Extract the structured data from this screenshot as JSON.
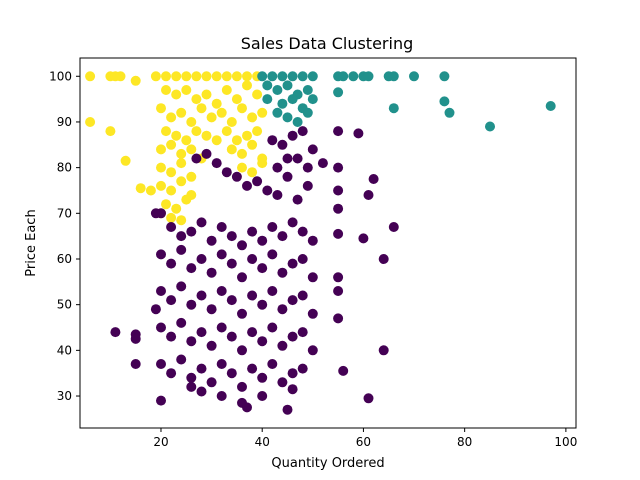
{
  "chart_data": {
    "type": "scatter",
    "title": "Sales Data Clustering",
    "xlabel": "Quantity Ordered",
    "ylabel": "Price Each",
    "xlim": [
      4,
      102
    ],
    "ylim": [
      23,
      104
    ],
    "xticks": [
      20,
      40,
      60,
      80,
      100
    ],
    "yticks": [
      30,
      40,
      50,
      60,
      70,
      80,
      90,
      100
    ],
    "grid": false,
    "legend": "none",
    "colors": {
      "cluster_yellow": "#fde725",
      "cluster_teal": "#21918c",
      "cluster_purple": "#440154"
    },
    "series": [
      {
        "color_key": "cluster_yellow",
        "points": [
          [
            6,
            100
          ],
          [
            6,
            90
          ],
          [
            10,
            100
          ],
          [
            11,
            100
          ],
          [
            12,
            100
          ],
          [
            15,
            99
          ],
          [
            10,
            88
          ],
          [
            13,
            81.5
          ],
          [
            16,
            75.5
          ],
          [
            18,
            75
          ],
          [
            19,
            100
          ],
          [
            21,
            100
          ],
          [
            23,
            100
          ],
          [
            25,
            100
          ],
          [
            27,
            100
          ],
          [
            29,
            100
          ],
          [
            31,
            100
          ],
          [
            33,
            100
          ],
          [
            35,
            100
          ],
          [
            37,
            100
          ],
          [
            39,
            100
          ],
          [
            21,
            97
          ],
          [
            23,
            96
          ],
          [
            25,
            97
          ],
          [
            27,
            95
          ],
          [
            29,
            96
          ],
          [
            31,
            94
          ],
          [
            33,
            97
          ],
          [
            35,
            95
          ],
          [
            37,
            98
          ],
          [
            39,
            96
          ],
          [
            20,
            93
          ],
          [
            22,
            91
          ],
          [
            24,
            92
          ],
          [
            26,
            90
          ],
          [
            28,
            93
          ],
          [
            30,
            91
          ],
          [
            32,
            92
          ],
          [
            34,
            90
          ],
          [
            36,
            93
          ],
          [
            38,
            91
          ],
          [
            40,
            92
          ],
          [
            21,
            88
          ],
          [
            23,
            87
          ],
          [
            25,
            86
          ],
          [
            27,
            88
          ],
          [
            29,
            87
          ],
          [
            31,
            86
          ],
          [
            33,
            88
          ],
          [
            35,
            86
          ],
          [
            37,
            87
          ],
          [
            39,
            88
          ],
          [
            20,
            84
          ],
          [
            22,
            85
          ],
          [
            24,
            83
          ],
          [
            26,
            84
          ],
          [
            28,
            82
          ],
          [
            34,
            84
          ],
          [
            36,
            83
          ],
          [
            38,
            85
          ],
          [
            40,
            82
          ],
          [
            20,
            80
          ],
          [
            22,
            79
          ],
          [
            24,
            81
          ],
          [
            26,
            78
          ],
          [
            36,
            80
          ],
          [
            38,
            79
          ],
          [
            40,
            81
          ],
          [
            20,
            76
          ],
          [
            22,
            75
          ],
          [
            24,
            77
          ],
          [
            26,
            74
          ],
          [
            21,
            72
          ],
          [
            23,
            71
          ],
          [
            25,
            73
          ],
          [
            20,
            70
          ],
          [
            22,
            69
          ],
          [
            24,
            68.5
          ]
        ]
      },
      {
        "color_key": "cluster_teal",
        "points": [
          [
            40,
            100
          ],
          [
            42,
            100
          ],
          [
            44,
            100
          ],
          [
            46,
            100
          ],
          [
            48,
            100
          ],
          [
            50,
            100
          ],
          [
            55,
            100
          ],
          [
            56,
            100
          ],
          [
            58,
            100
          ],
          [
            60,
            100
          ],
          [
            61,
            100
          ],
          [
            65,
            100
          ],
          [
            66,
            100
          ],
          [
            70,
            100
          ],
          [
            76,
            100
          ],
          [
            41,
            98
          ],
          [
            43,
            97
          ],
          [
            45,
            98
          ],
          [
            47,
            96
          ],
          [
            49,
            97
          ],
          [
            41,
            95
          ],
          [
            44,
            94
          ],
          [
            46,
            95
          ],
          [
            48,
            93
          ],
          [
            50,
            95
          ],
          [
            55,
            96.5
          ],
          [
            43,
            92
          ],
          [
            45,
            91
          ],
          [
            47,
            90
          ],
          [
            49,
            92
          ],
          [
            76,
            94.5
          ],
          [
            66,
            93
          ],
          [
            77,
            92
          ],
          [
            97,
            93.5
          ],
          [
            85,
            89
          ]
        ]
      },
      {
        "color_key": "cluster_purple",
        "points": [
          [
            20,
            70
          ],
          [
            22,
            67
          ],
          [
            24,
            65
          ],
          [
            26,
            66
          ],
          [
            28,
            68
          ],
          [
            30,
            64
          ],
          [
            32,
            67
          ],
          [
            34,
            65
          ],
          [
            36,
            63
          ],
          [
            38,
            66
          ],
          [
            40,
            64
          ],
          [
            42,
            67
          ],
          [
            44,
            65
          ],
          [
            46,
            68
          ],
          [
            48,
            66
          ],
          [
            50,
            64
          ],
          [
            19,
            70
          ],
          [
            27,
            82
          ],
          [
            29,
            83
          ],
          [
            31,
            81
          ],
          [
            33,
            79
          ],
          [
            35,
            78
          ],
          [
            37,
            76
          ],
          [
            39,
            77
          ],
          [
            41,
            75
          ],
          [
            43,
            74
          ],
          [
            45,
            78
          ],
          [
            47,
            73
          ],
          [
            49,
            76
          ],
          [
            42,
            86
          ],
          [
            44,
            85
          ],
          [
            46,
            87
          ],
          [
            48,
            88
          ],
          [
            50,
            84
          ],
          [
            45,
            82
          ],
          [
            49,
            80
          ],
          [
            43,
            80
          ],
          [
            47,
            82
          ],
          [
            20,
            61
          ],
          [
            22,
            59
          ],
          [
            24,
            62
          ],
          [
            26,
            58
          ],
          [
            28,
            60
          ],
          [
            30,
            57
          ],
          [
            32,
            61
          ],
          [
            34,
            59
          ],
          [
            36,
            56
          ],
          [
            38,
            60
          ],
          [
            40,
            58
          ],
          [
            42,
            61
          ],
          [
            44,
            57
          ],
          [
            46,
            59
          ],
          [
            48,
            60
          ],
          [
            50,
            56
          ],
          [
            20,
            53
          ],
          [
            22,
            51
          ],
          [
            24,
            54
          ],
          [
            26,
            50
          ],
          [
            28,
            52
          ],
          [
            30,
            49
          ],
          [
            32,
            53
          ],
          [
            34,
            51
          ],
          [
            36,
            48
          ],
          [
            38,
            52
          ],
          [
            40,
            50
          ],
          [
            42,
            53
          ],
          [
            44,
            49
          ],
          [
            46,
            51
          ],
          [
            48,
            52
          ],
          [
            50,
            48
          ],
          [
            19,
            49
          ],
          [
            20,
            45
          ],
          [
            22,
            43
          ],
          [
            24,
            46
          ],
          [
            26,
            42
          ],
          [
            28,
            44
          ],
          [
            30,
            41
          ],
          [
            32,
            45
          ],
          [
            34,
            43
          ],
          [
            36,
            40
          ],
          [
            38,
            44
          ],
          [
            40,
            42
          ],
          [
            42,
            45
          ],
          [
            44,
            41
          ],
          [
            46,
            43
          ],
          [
            48,
            44
          ],
          [
            50,
            40
          ],
          [
            20,
            37
          ],
          [
            22,
            35
          ],
          [
            24,
            38
          ],
          [
            26,
            34
          ],
          [
            28,
            36
          ],
          [
            30,
            33
          ],
          [
            32,
            37
          ],
          [
            34,
            35
          ],
          [
            36,
            32
          ],
          [
            38,
            36
          ],
          [
            40,
            34
          ],
          [
            42,
            37
          ],
          [
            44,
            33
          ],
          [
            46,
            35
          ],
          [
            48,
            36
          ],
          [
            20,
            29
          ],
          [
            26,
            32
          ],
          [
            28,
            31
          ],
          [
            32,
            30
          ],
          [
            36,
            28.5
          ],
          [
            40,
            30
          ],
          [
            46,
            31.5
          ],
          [
            37,
            27.5
          ],
          [
            45,
            27
          ],
          [
            11,
            44
          ],
          [
            15,
            43.5
          ],
          [
            15,
            42.5
          ],
          [
            15,
            37
          ],
          [
            52,
            81
          ],
          [
            55,
            88
          ],
          [
            59,
            87.5
          ],
          [
            55,
            80
          ],
          [
            62,
            77.5
          ],
          [
            55,
            75
          ],
          [
            61,
            74
          ],
          [
            55,
            71
          ],
          [
            66,
            67
          ],
          [
            55,
            65.5
          ],
          [
            60,
            64.5
          ],
          [
            64,
            60
          ],
          [
            55,
            56
          ],
          [
            55,
            53
          ],
          [
            55,
            47
          ],
          [
            56,
            35.5
          ],
          [
            64,
            40
          ],
          [
            61,
            29.5
          ]
        ]
      }
    ]
  }
}
